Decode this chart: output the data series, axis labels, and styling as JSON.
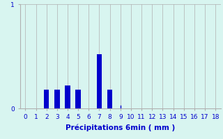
{
  "xlabel": "Précipitations 6min ( mm )",
  "categories": [
    0,
    1,
    2,
    3,
    4,
    5,
    6,
    7,
    8,
    9,
    10,
    11,
    12,
    13,
    14,
    15,
    16,
    17,
    18
  ],
  "values": [
    0,
    0,
    0.18,
    0.18,
    0.22,
    0.18,
    0,
    0.52,
    0.18,
    0.0,
    0,
    0,
    0,
    0,
    0,
    0,
    0,
    0,
    0
  ],
  "bar_color": "#0000cc",
  "bg_color": "#d8f5f0",
  "grid_color": "#b0b0b0",
  "ylim": [
    0,
    1.0
  ],
  "yticks": [
    0,
    1
  ],
  "ytick_labels": [
    "0",
    "1"
  ],
  "xlim": [
    -0.5,
    18.5
  ],
  "bar_width": 0.5,
  "xlabel_fontsize": 7.5,
  "tick_fontsize": 6.5
}
